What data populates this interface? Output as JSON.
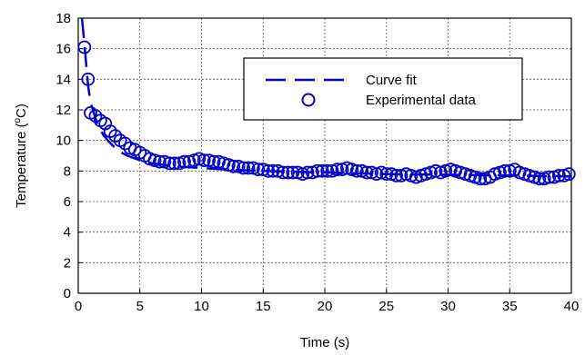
{
  "chart_data": {
    "type": "scatter",
    "xlabel": "Time (s)",
    "ylabel_main": "Temperature (",
    "ylabel_sup": "o",
    "ylabel_end": "C)",
    "xlim": [
      0,
      40
    ],
    "ylim": [
      0,
      18
    ],
    "xticks": [
      "0",
      "5",
      "10",
      "15",
      "20",
      "25",
      "30",
      "35",
      "40"
    ],
    "yticks": [
      "0",
      "2",
      "4",
      "6",
      "8",
      "10",
      "12",
      "14",
      "16",
      "18"
    ],
    "grid": true,
    "legend_position": "top-right",
    "colors": {
      "series": "#0000cc",
      "grid": "#555555"
    },
    "series": [
      {
        "name": "Curve fit",
        "style": "dashed-line",
        "x": [
          0.3,
          0.5,
          0.8,
          1.0,
          1.5,
          2.0,
          2.5,
          3.0,
          3.5,
          4.0,
          5.0,
          6.0,
          7.0,
          8.0,
          10.0,
          12.0,
          15.0,
          20.0,
          25.0,
          30.0,
          35.0,
          40.0
        ],
        "y": [
          18.0,
          16.3,
          13.6,
          12.5,
          11.2,
          10.4,
          9.9,
          9.5,
          9.2,
          9.0,
          8.7,
          8.5,
          8.4,
          8.3,
          8.2,
          8.1,
          8.0,
          7.9,
          7.8,
          7.75,
          7.7,
          7.65
        ]
      },
      {
        "name": "Experimental data",
        "style": "open-circle",
        "x": [
          0.5,
          0.8,
          1.0,
          1.4,
          1.8,
          2.2,
          2.6,
          3.0,
          3.4,
          3.8,
          4.2,
          4.6,
          5.0,
          5.4,
          5.8,
          6.2,
          6.6,
          7.0,
          7.4,
          7.8,
          8.2,
          8.6,
          9.0,
          9.4,
          9.8,
          10.2,
          10.6,
          11.0,
          11.4,
          11.8,
          12.2,
          12.6,
          13.0,
          13.4,
          13.8,
          14.2,
          14.6,
          15.0,
          15.4,
          15.8,
          16.2,
          16.6,
          17.0,
          17.4,
          17.8,
          18.2,
          18.6,
          19.0,
          19.4,
          19.8,
          20.2,
          20.6,
          21.0,
          21.4,
          21.8,
          22.2,
          22.6,
          23.0,
          23.4,
          23.8,
          24.2,
          24.6,
          25.0,
          25.4,
          25.8,
          26.2,
          26.6,
          27.0,
          27.4,
          27.8,
          28.2,
          28.6,
          29.0,
          29.4,
          29.8,
          30.2,
          30.6,
          31.0,
          31.4,
          31.8,
          32.2,
          32.6,
          33.0,
          33.4,
          33.8,
          34.2,
          34.6,
          35.0,
          35.4,
          35.8,
          36.2,
          36.6,
          37.0,
          37.4,
          37.8,
          38.2,
          38.6,
          39.0,
          39.4,
          39.8
        ],
        "y": [
          16.1,
          14.0,
          11.8,
          11.6,
          11.3,
          11.1,
          10.6,
          10.3,
          10.0,
          9.8,
          9.5,
          9.4,
          9.2,
          9.0,
          8.8,
          8.7,
          8.6,
          8.6,
          8.5,
          8.5,
          8.5,
          8.6,
          8.6,
          8.7,
          8.8,
          8.7,
          8.7,
          8.6,
          8.6,
          8.5,
          8.4,
          8.3,
          8.3,
          8.2,
          8.2,
          8.2,
          8.1,
          8.1,
          8.0,
          8.0,
          8.0,
          7.9,
          7.9,
          7.9,
          7.9,
          7.8,
          7.9,
          7.9,
          8.0,
          8.0,
          8.0,
          8.0,
          8.1,
          8.1,
          8.2,
          8.1,
          8.0,
          8.0,
          7.9,
          7.9,
          7.8,
          7.9,
          7.8,
          7.8,
          7.7,
          7.7,
          7.8,
          7.7,
          7.6,
          7.7,
          7.8,
          7.9,
          8.0,
          7.9,
          8.0,
          8.1,
          8.0,
          7.9,
          7.8,
          7.7,
          7.6,
          7.5,
          7.5,
          7.6,
          7.8,
          7.9,
          8.0,
          8.0,
          8.1,
          7.9,
          7.8,
          7.7,
          7.6,
          7.5,
          7.5,
          7.6,
          7.6,
          7.7,
          7.7,
          7.8
        ]
      }
    ]
  }
}
